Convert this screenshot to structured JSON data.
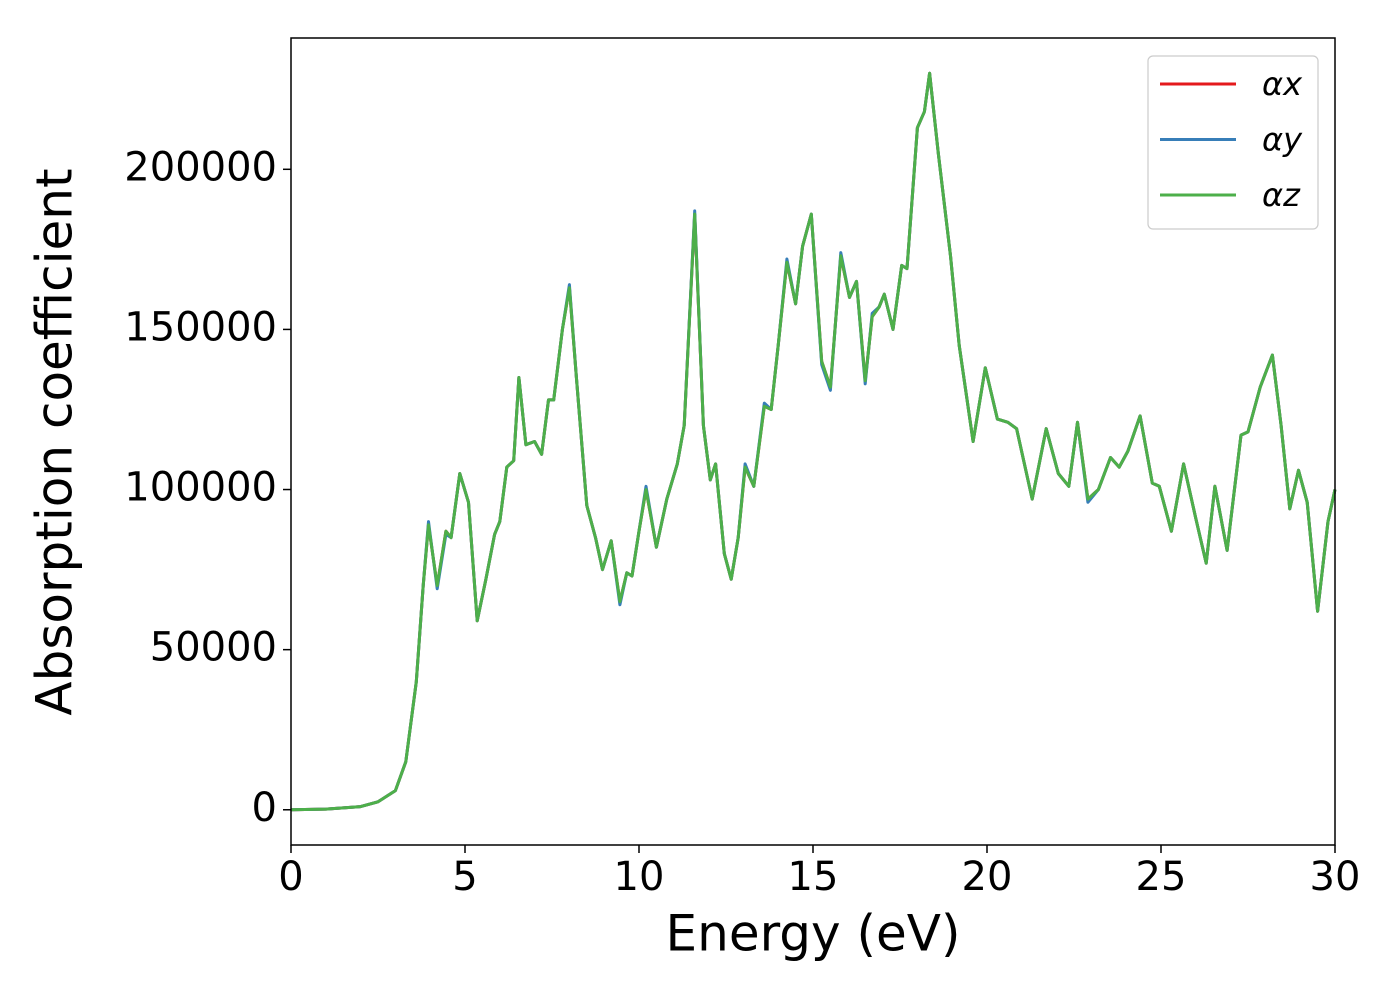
{
  "chart_data": {
    "type": "line",
    "xlabel": "Energy (eV)",
    "ylabel": "Absorption coefficient",
    "x": [
      0,
      1,
      2,
      2.5,
      3,
      3.3,
      3.6,
      3.8,
      3.95,
      4.2,
      4.45,
      4.6,
      4.85,
      5.1,
      5.35,
      5.6,
      5.85,
      6.0,
      6.2,
      6.4,
      6.55,
      6.75,
      7.0,
      7.2,
      7.4,
      7.55,
      7.8,
      8.0,
      8.2,
      8.5,
      8.75,
      8.95,
      9.2,
      9.45,
      9.65,
      9.8,
      10.0,
      10.2,
      10.5,
      10.8,
      11.1,
      11.3,
      11.6,
      11.85,
      12.05,
      12.2,
      12.45,
      12.65,
      12.85,
      13.05,
      13.3,
      13.6,
      13.8,
      14.0,
      14.25,
      14.5,
      14.7,
      14.95,
      15.25,
      15.5,
      15.8,
      16.05,
      16.25,
      16.5,
      16.7,
      16.9,
      17.05,
      17.3,
      17.55,
      17.7,
      18.0,
      18.2,
      18.35,
      18.6,
      18.95,
      19.2,
      19.6,
      19.95,
      20.3,
      20.6,
      20.85,
      21.3,
      21.7,
      22.05,
      22.35,
      22.6,
      22.9,
      23.2,
      23.55,
      23.8,
      24.05,
      24.4,
      24.75,
      24.95,
      25.3,
      25.65,
      26.0,
      26.3,
      26.55,
      26.9,
      27.3,
      27.5,
      27.85,
      28.2,
      28.45,
      28.7,
      28.95,
      29.2,
      29.5,
      29.8,
      30
    ],
    "series": [
      {
        "name": "αx",
        "color": "#e41a1c",
        "values": [
          0,
          200,
          1000,
          2500,
          6000,
          15000,
          40000,
          70000,
          89000,
          70000,
          87000,
          85000,
          105000,
          96000,
          59000,
          72000,
          86000,
          90000,
          107000,
          109000,
          135000,
          114000,
          115000,
          111000,
          128000,
          128000,
          150000,
          163000,
          135000,
          95000,
          85000,
          75000,
          84000,
          65000,
          74000,
          73000,
          87000,
          100000,
          82000,
          97000,
          108000,
          120000,
          186000,
          120000,
          103000,
          108000,
          80000,
          72000,
          85000,
          107000,
          101000,
          126000,
          125000,
          145000,
          171000,
          158000,
          176000,
          186000,
          140000,
          132000,
          173000,
          160000,
          165000,
          134000,
          154000,
          157000,
          161000,
          150000,
          170000,
          169000,
          213000,
          218000,
          230000,
          205000,
          173000,
          145000,
          115000,
          138000,
          122000,
          121000,
          119000,
          97000,
          119000,
          105000,
          101000,
          121000,
          97000,
          100000,
          110000,
          107000,
          112000,
          123000,
          102000,
          101000,
          87000,
          108000,
          91000,
          77000,
          101000,
          81000,
          117000,
          118000,
          132000,
          142000,
          120000,
          94000,
          106000,
          96000,
          62000,
          90000,
          100000
        ]
      },
      {
        "name": "αy",
        "color": "#377eb8",
        "values": [
          0,
          200,
          1000,
          2500,
          6000,
          15000,
          40000,
          70000,
          90000,
          69000,
          86000,
          85000,
          105000,
          96000,
          59000,
          72000,
          86000,
          90000,
          107000,
          109000,
          135000,
          114000,
          115000,
          111000,
          128000,
          128000,
          150000,
          164000,
          135000,
          95000,
          85000,
          75000,
          84000,
          64000,
          74000,
          73000,
          87000,
          101000,
          82000,
          97000,
          108000,
          120000,
          187000,
          120000,
          103000,
          108000,
          80000,
          72000,
          85000,
          108000,
          101000,
          127000,
          125000,
          145000,
          172000,
          158000,
          176000,
          186000,
          139000,
          131000,
          174000,
          160000,
          165000,
          133000,
          155000,
          157000,
          161000,
          150000,
          170000,
          169000,
          213000,
          218000,
          230000,
          205000,
          173000,
          145000,
          115000,
          138000,
          122000,
          121000,
          119000,
          97000,
          119000,
          105000,
          101000,
          121000,
          96000,
          100000,
          110000,
          107000,
          112000,
          123000,
          102000,
          101000,
          87000,
          108000,
          91000,
          77000,
          101000,
          81000,
          117000,
          118000,
          132000,
          142000,
          120000,
          94000,
          106000,
          96000,
          62000,
          90000,
          100000
        ]
      },
      {
        "name": "αz",
        "color": "#4daf4a",
        "values": [
          0,
          200,
          1000,
          2500,
          6000,
          15000,
          40000,
          70000,
          89000,
          70000,
          87000,
          85000,
          105000,
          96000,
          59000,
          72000,
          86000,
          90000,
          107000,
          109000,
          135000,
          114000,
          115000,
          111000,
          128000,
          128000,
          150000,
          163000,
          135000,
          95000,
          85000,
          75000,
          84000,
          65000,
          74000,
          73000,
          87000,
          100000,
          82000,
          97000,
          108000,
          120000,
          186000,
          120000,
          103000,
          108000,
          80000,
          72000,
          85000,
          107000,
          101000,
          126000,
          125000,
          145000,
          171000,
          158000,
          176000,
          186000,
          140000,
          132000,
          173000,
          160000,
          165000,
          134000,
          154000,
          157000,
          161000,
          150000,
          170000,
          169000,
          213000,
          218000,
          230000,
          205000,
          173000,
          145000,
          115000,
          138000,
          122000,
          121000,
          119000,
          97000,
          119000,
          105000,
          101000,
          121000,
          97000,
          100000,
          110000,
          107000,
          112000,
          123000,
          102000,
          101000,
          87000,
          108000,
          91000,
          77000,
          101000,
          81000,
          117000,
          118000,
          132000,
          142000,
          120000,
          94000,
          106000,
          96000,
          62000,
          90000,
          100000
        ]
      }
    ],
    "xlim": [
      0,
      30
    ],
    "xticks": [
      0,
      5,
      10,
      15,
      20,
      25,
      30
    ],
    "ylim": [
      -11000,
      241000
    ],
    "yticks": [
      0,
      50000,
      100000,
      150000,
      200000
    ],
    "grid": false,
    "legend": "upper right"
  }
}
